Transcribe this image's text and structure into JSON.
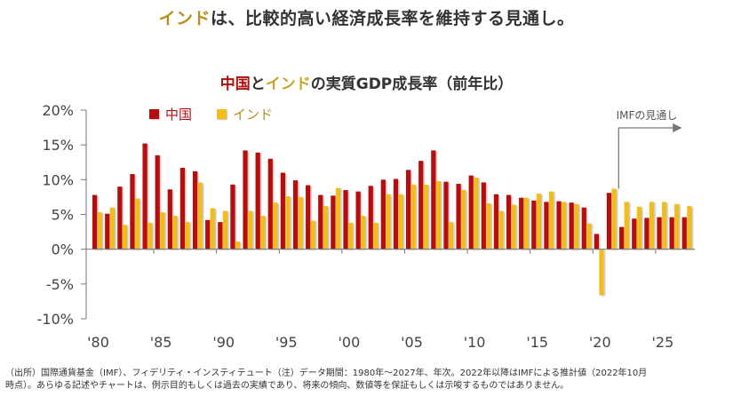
{
  "headline": {
    "highlight": "インド",
    "rest": "は、比較的高い経済成長率を維持する見通し。"
  },
  "chart_title": {
    "part_china": "中国",
    "part_and": "と",
    "part_india": "インド",
    "part_rest": "の実質GDP成長率（前年比）"
  },
  "colors": {
    "china": "#b70d0d",
    "india": "#f2bc1b",
    "axis": "#777777",
    "text": "#333333"
  },
  "forecast_annotation": "IMFの見通し",
  "footnote": {
    "line1": "（出所）国際通貨基金（IMF）、フィデリティ・インスティテュート（注）データ期間：1980年～2027年、年次。2022年以降はIMFによる推計値（2022年10月",
    "line2": "時点）。あらゆる記述やチャートは、例示目的もしくは過去の実績であり、将来の傾向、数値等を保証もしくは示唆するものではありません。"
  },
  "chart_data": {
    "type": "bar",
    "title": "中国とインドの実質GDP成長率（前年比）",
    "xlabel": "",
    "ylabel": "",
    "ylim": [
      -10,
      20
    ],
    "yticks": [
      -10,
      -5,
      0,
      5,
      10,
      15,
      20
    ],
    "ytick_labels": [
      "-10%",
      "-5%",
      "0%",
      "5%",
      "10%",
      "15%",
      "20%"
    ],
    "xtick_years": [
      1980,
      1985,
      1990,
      1995,
      2000,
      2005,
      2010,
      2015,
      2020,
      2025
    ],
    "xtick_labels": [
      "'80",
      "'85",
      "'90",
      "'95",
      "'00",
      "'05",
      "'10",
      "'15",
      "'20",
      "'25"
    ],
    "grid": false,
    "legend_position": "top-left",
    "forecast_start_year": 2022,
    "categories": [
      1980,
      1981,
      1982,
      1983,
      1984,
      1985,
      1986,
      1987,
      1988,
      1989,
      1990,
      1991,
      1992,
      1993,
      1994,
      1995,
      1996,
      1997,
      1998,
      1999,
      2000,
      2001,
      2002,
      2003,
      2004,
      2005,
      2006,
      2007,
      2008,
      2009,
      2010,
      2011,
      2012,
      2013,
      2014,
      2015,
      2016,
      2017,
      2018,
      2019,
      2020,
      2021,
      2022,
      2023,
      2024,
      2025,
      2026,
      2027
    ],
    "series": [
      {
        "name": "中国",
        "values": [
          7.8,
          5.1,
          9.0,
          10.8,
          15.2,
          13.5,
          8.6,
          11.7,
          11.2,
          4.2,
          3.9,
          9.3,
          14.2,
          13.9,
          13.0,
          11.0,
          9.9,
          9.2,
          7.8,
          7.7,
          8.5,
          8.3,
          9.1,
          10.0,
          10.1,
          11.4,
          12.7,
          14.2,
          9.7,
          9.4,
          10.6,
          9.6,
          7.9,
          7.8,
          7.4,
          7.0,
          6.8,
          6.9,
          6.7,
          6.0,
          2.2,
          8.1,
          3.2,
          4.4,
          4.5,
          4.6,
          4.6,
          4.6
        ]
      },
      {
        "name": "インド",
        "values": [
          5.3,
          6.0,
          3.5,
          7.3,
          3.8,
          5.3,
          4.8,
          3.9,
          9.6,
          5.9,
          5.5,
          1.1,
          5.5,
          4.8,
          6.7,
          7.6,
          7.5,
          4.1,
          6.2,
          8.8,
          3.8,
          4.8,
          3.8,
          7.9,
          7.9,
          9.3,
          9.3,
          9.8,
          3.9,
          8.5,
          10.3,
          6.6,
          5.5,
          6.4,
          7.4,
          8.0,
          8.3,
          6.8,
          6.5,
          3.7,
          -6.6,
          8.7,
          6.8,
          6.1,
          6.8,
          6.8,
          6.5,
          6.2
        ]
      }
    ]
  }
}
